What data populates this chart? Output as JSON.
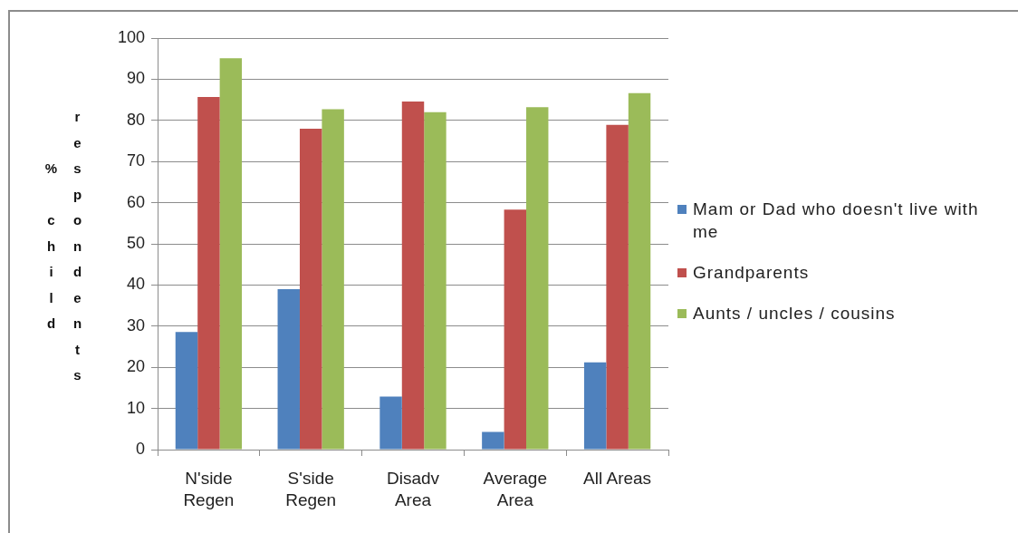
{
  "chart_data": {
    "type": "bar",
    "ylabel": "% child respondents",
    "categories": [
      "N'side Regen",
      "S'side Regen",
      "Disadv Area",
      "Average Area",
      "All Areas"
    ],
    "series": [
      {
        "name": "Mam or Dad who doesn't live with me",
        "color": "#4f81bd",
        "values": [
          28.6,
          39.0,
          12.9,
          4.3,
          21.2
        ]
      },
      {
        "name": "Grandparents",
        "color": "#c0504d",
        "values": [
          85.7,
          78.0,
          84.6,
          58.3,
          78.9
        ]
      },
      {
        "name": "Aunts / uncles / cousins",
        "color": "#9bbb59",
        "values": [
          95.1,
          82.7,
          82.0,
          83.2,
          86.6
        ]
      }
    ],
    "ylim": [
      0,
      100
    ],
    "yticks": [
      0,
      10,
      20,
      30,
      40,
      50,
      60,
      70,
      80,
      90,
      100
    ],
    "grid": "y",
    "legend": "right"
  }
}
